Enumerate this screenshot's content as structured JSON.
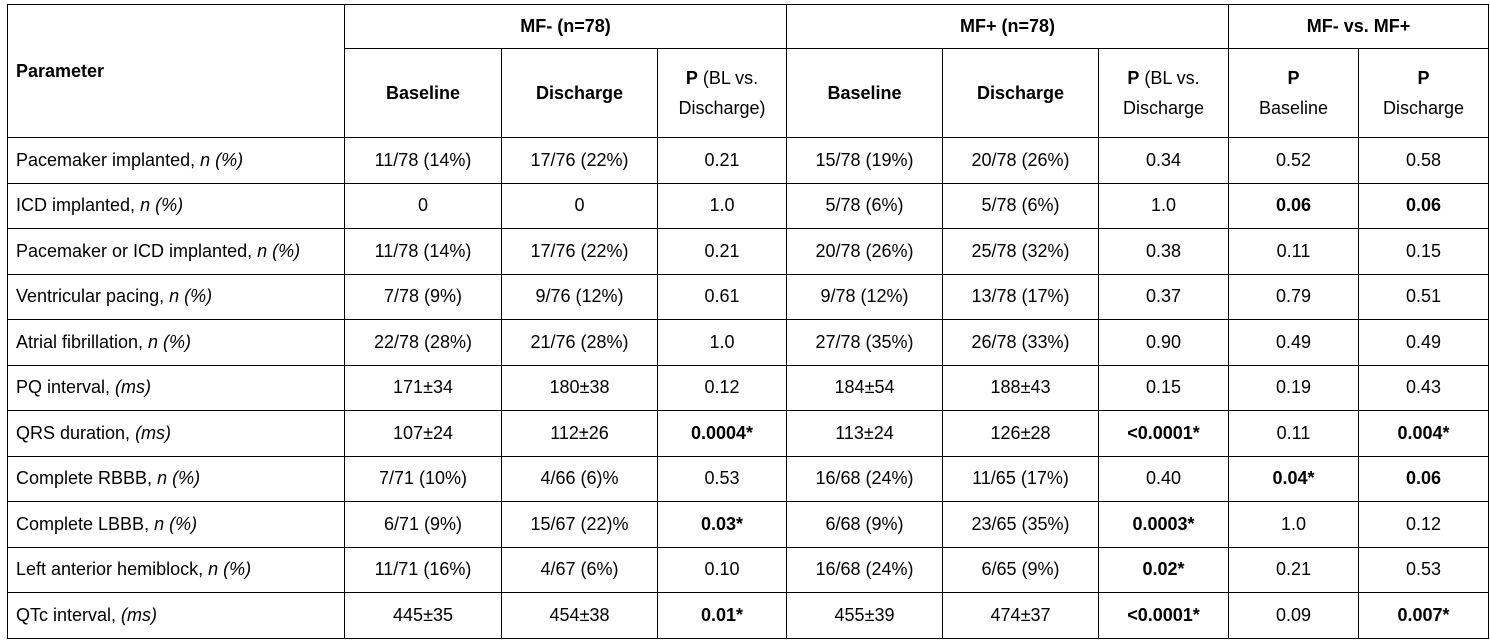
{
  "header": {
    "parameter": "Parameter",
    "groups": [
      "MF- (n=78)",
      "MF+ (n=78)",
      "MF- vs. MF+"
    ],
    "sub": [
      {
        "bold": "Baseline",
        "rest": ""
      },
      {
        "bold": "Discharge",
        "rest": ""
      },
      {
        "bold": "P",
        "rest": " (BL vs. Discharge)"
      },
      {
        "bold": "Baseline",
        "rest": ""
      },
      {
        "bold": "Discharge",
        "rest": ""
      },
      {
        "bold": "P",
        "rest": " (BL vs. Discharge"
      },
      {
        "bold": "P",
        "rest": "Baseline"
      },
      {
        "bold": "P",
        "rest": "Discharge"
      }
    ]
  },
  "rows": [
    {
      "label": "Pacemaker implanted, ",
      "unit": "n (%)",
      "cells": [
        {
          "v": "11/78 (14%)"
        },
        {
          "v": "17/76 (22%)"
        },
        {
          "v": "0.21"
        },
        {
          "v": "15/78 (19%)"
        },
        {
          "v": "20/78 (26%)"
        },
        {
          "v": "0.34"
        },
        {
          "v": "0.52"
        },
        {
          "v": "0.58"
        }
      ]
    },
    {
      "label": "ICD implanted, ",
      "unit": "n (%)",
      "cells": [
        {
          "v": "0"
        },
        {
          "v": "0"
        },
        {
          "v": "1.0"
        },
        {
          "v": "5/78 (6%)"
        },
        {
          "v": "5/78 (6%)"
        },
        {
          "v": "1.0"
        },
        {
          "v": "0.06",
          "bold": true
        },
        {
          "v": "0.06",
          "bold": true
        }
      ]
    },
    {
      "label": "Pacemaker or ICD implanted, ",
      "unit": "n (%)",
      "cells": [
        {
          "v": "11/78 (14%)"
        },
        {
          "v": "17/76 (22%)"
        },
        {
          "v": "0.21"
        },
        {
          "v": "20/78 (26%)"
        },
        {
          "v": "25/78 (32%)"
        },
        {
          "v": "0.38"
        },
        {
          "v": "0.11"
        },
        {
          "v": "0.15"
        }
      ]
    },
    {
      "label": "Ventricular pacing, ",
      "unit": "n (%)",
      "cells": [
        {
          "v": "7/78 (9%)"
        },
        {
          "v": "9/76 (12%)"
        },
        {
          "v": "0.61"
        },
        {
          "v": "9/78 (12%)"
        },
        {
          "v": "13/78 (17%)"
        },
        {
          "v": "0.37"
        },
        {
          "v": "0.79"
        },
        {
          "v": "0.51"
        }
      ]
    },
    {
      "label": "Atrial fibrillation, ",
      "unit": "n (%)",
      "cells": [
        {
          "v": "22/78 (28%)"
        },
        {
          "v": "21/76 (28%)"
        },
        {
          "v": "1.0"
        },
        {
          "v": "27/78 (35%)"
        },
        {
          "v": "26/78 (33%)"
        },
        {
          "v": "0.90"
        },
        {
          "v": "0.49"
        },
        {
          "v": "0.49"
        }
      ]
    },
    {
      "label": "PQ interval, ",
      "unit": "(ms)",
      "cells": [
        {
          "v": "171±34"
        },
        {
          "v": "180±38"
        },
        {
          "v": "0.12"
        },
        {
          "v": "184±54"
        },
        {
          "v": "188±43"
        },
        {
          "v": "0.15"
        },
        {
          "v": "0.19"
        },
        {
          "v": "0.43"
        }
      ]
    },
    {
      "label": "QRS duration, ",
      "unit": "(ms)",
      "cells": [
        {
          "v": "107±24"
        },
        {
          "v": "112±26"
        },
        {
          "v": "0.0004*",
          "bold": true
        },
        {
          "v": "113±24"
        },
        {
          "v": "126±28"
        },
        {
          "v": "<0.0001*",
          "bold": true
        },
        {
          "v": "0.11"
        },
        {
          "v": "0.004*",
          "bold": true
        }
      ]
    },
    {
      "label": "Complete RBBB, ",
      "unit": "n (%)",
      "cells": [
        {
          "v": "7/71 (10%)"
        },
        {
          "v": "4/66 (6)%"
        },
        {
          "v": "0.53"
        },
        {
          "v": "16/68 (24%)"
        },
        {
          "v": "11/65 (17%)"
        },
        {
          "v": "0.40"
        },
        {
          "v": "0.04*",
          "bold": true
        },
        {
          "v": "0.06",
          "bold": true
        }
      ]
    },
    {
      "label": "Complete LBBB, ",
      "unit": "n (%)",
      "cells": [
        {
          "v": "6/71 (9%)"
        },
        {
          "v": "15/67 (22)%"
        },
        {
          "v": "0.03*",
          "bold": true
        },
        {
          "v": "6/68 (9%)"
        },
        {
          "v": "23/65 (35%)"
        },
        {
          "v": "0.0003*",
          "bold": true
        },
        {
          "v": "1.0"
        },
        {
          "v": "0.12"
        }
      ]
    },
    {
      "label": "Left anterior hemiblock, ",
      "unit": "n (%)",
      "cells": [
        {
          "v": "11/71 (16%)"
        },
        {
          "v": "4/67 (6%)"
        },
        {
          "v": "0.10"
        },
        {
          "v": "16/68 (24%)"
        },
        {
          "v": "6/65 (9%)"
        },
        {
          "v": "0.02*",
          "bold": true
        },
        {
          "v": "0.21"
        },
        {
          "v": "0.53"
        }
      ]
    },
    {
      "label": "QTc interval, ",
      "unit": "(ms)",
      "cells": [
        {
          "v": "445±35"
        },
        {
          "v": "454±38"
        },
        {
          "v": "0.01*",
          "bold": true
        },
        {
          "v": "455±39"
        },
        {
          "v": "474±37"
        },
        {
          "v": "<0.0001*",
          "bold": true
        },
        {
          "v": "0.09"
        },
        {
          "v": "0.007*",
          "bold": true
        }
      ]
    }
  ]
}
